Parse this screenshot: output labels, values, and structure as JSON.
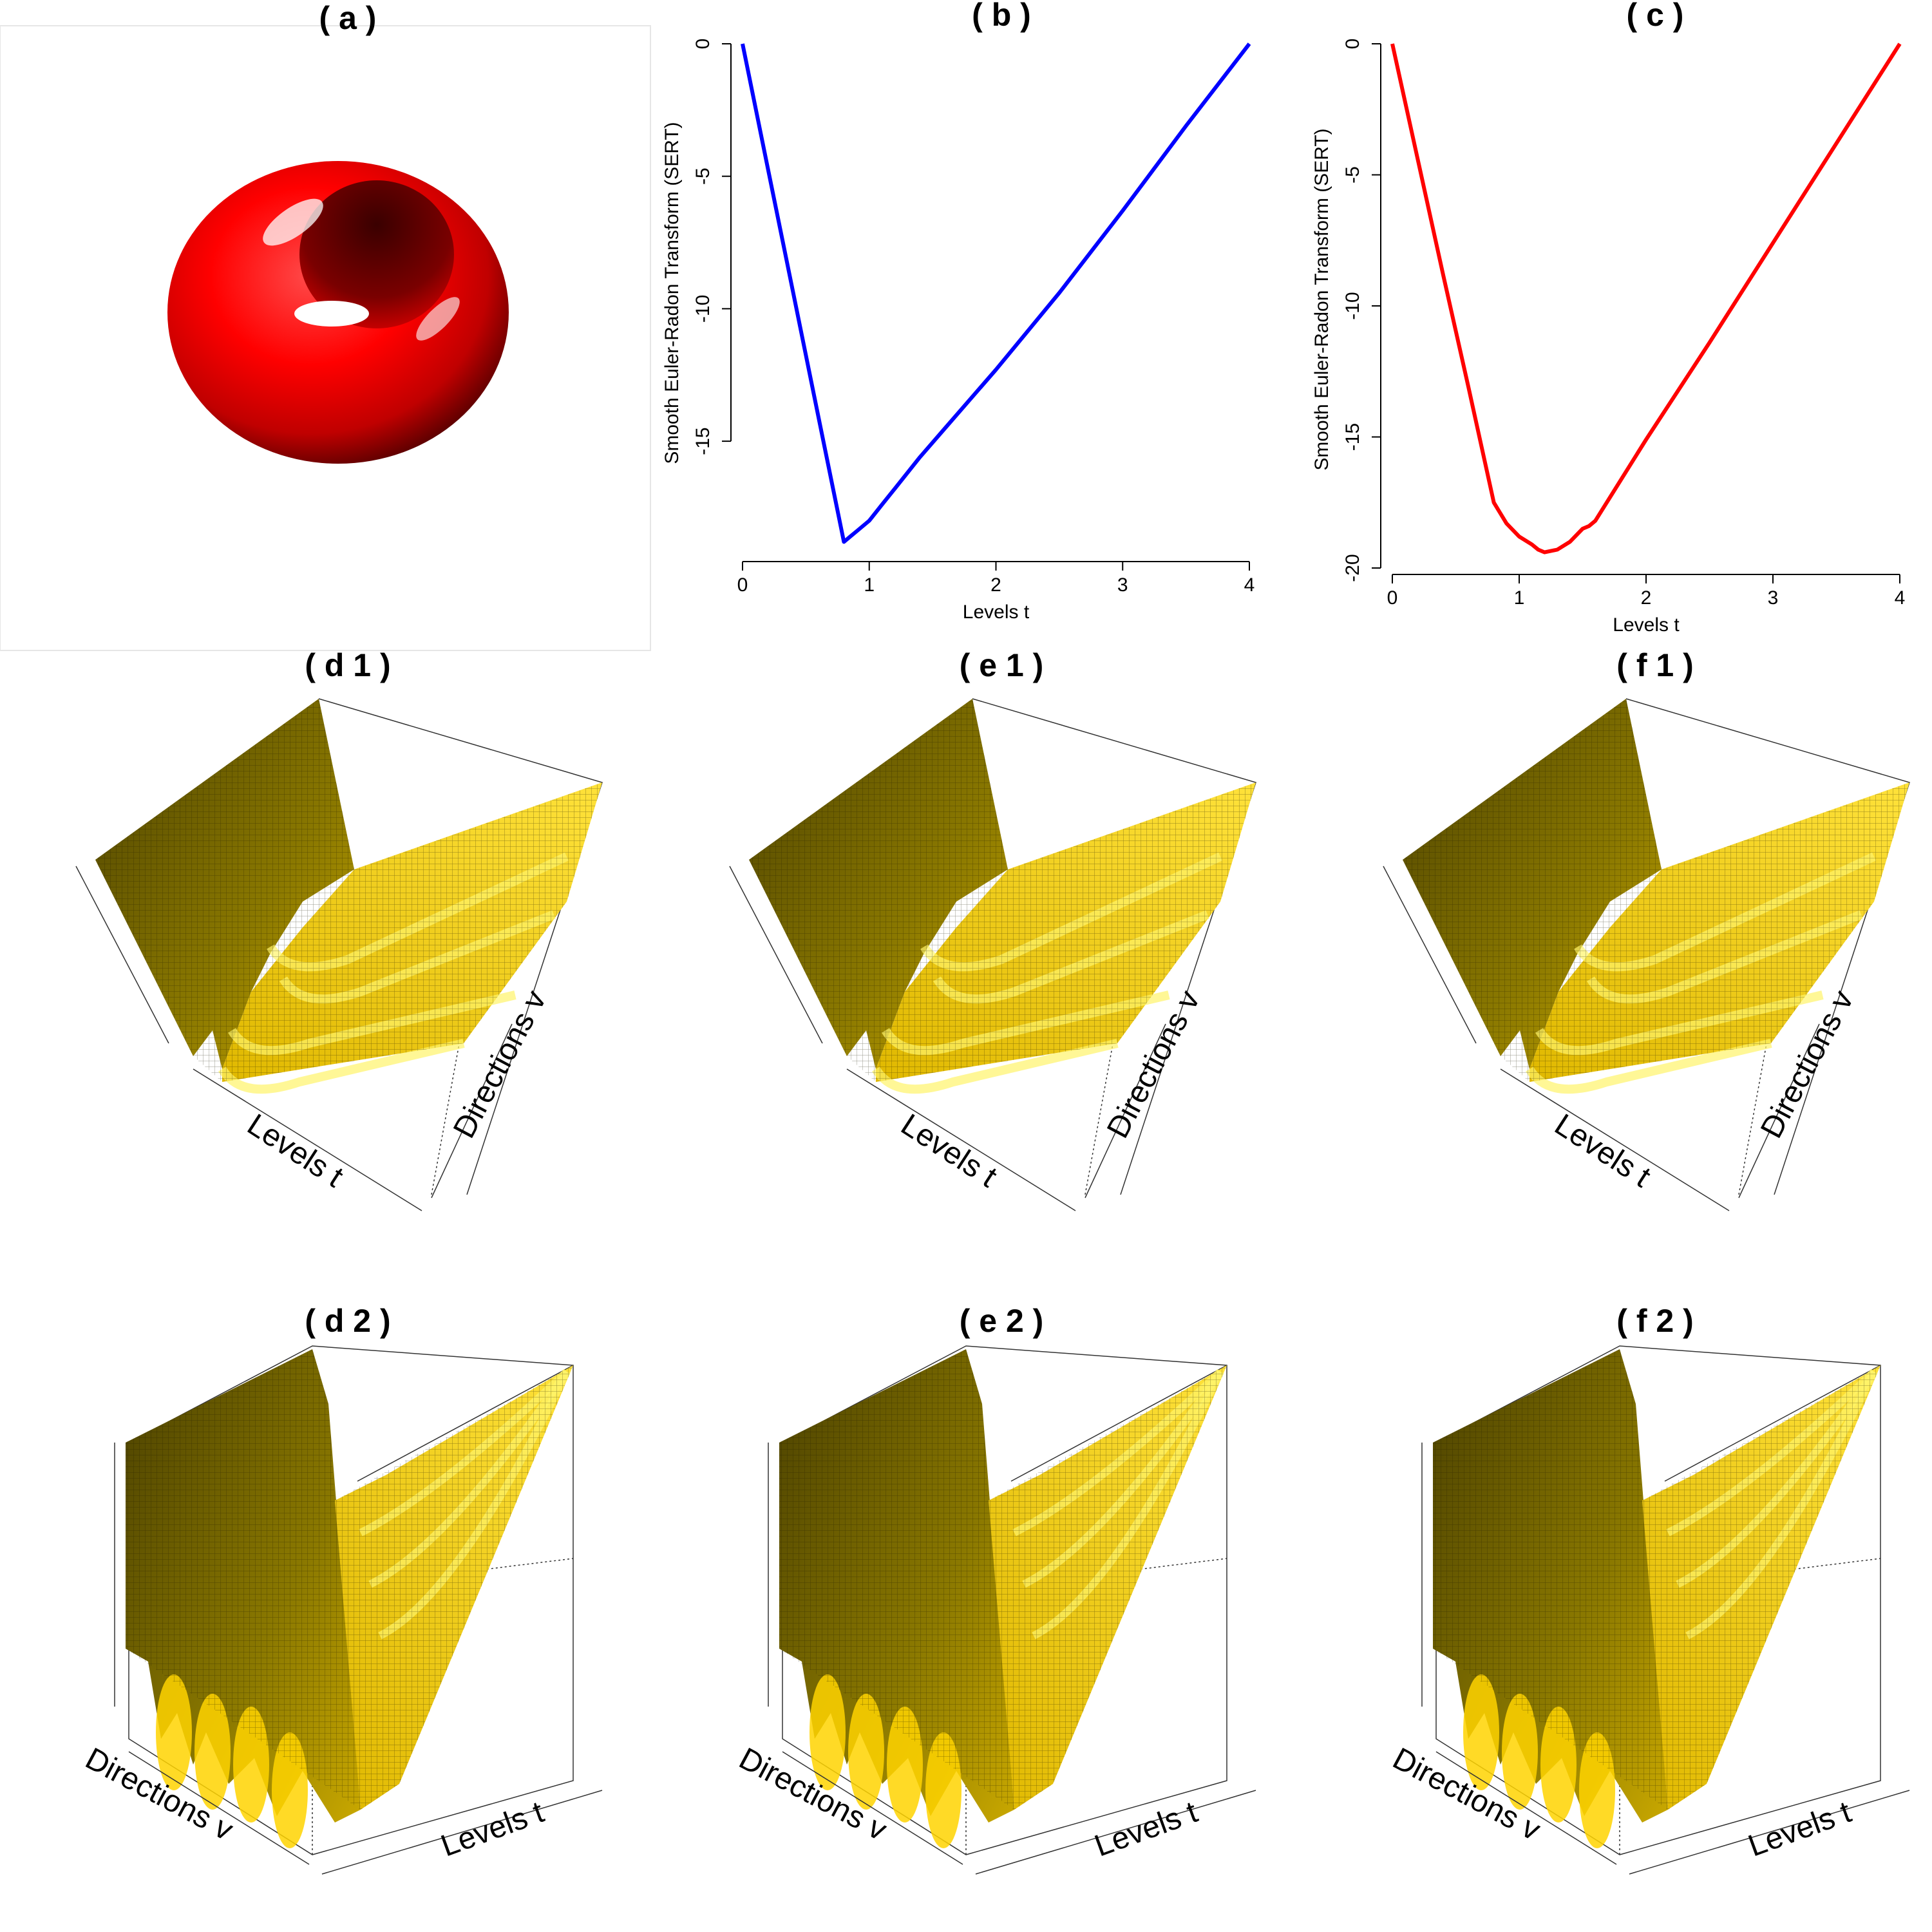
{
  "panels": {
    "a": {
      "title": "( a )"
    },
    "b": {
      "title": "( b )"
    },
    "c": {
      "title": "( c )"
    },
    "d1": {
      "title": "( d 1 )",
      "xlabel": "Levels t",
      "ylabel": "Directions v"
    },
    "e1": {
      "title": "( e 1 )",
      "xlabel": "Levels t",
      "ylabel": "Directions v"
    },
    "f1": {
      "title": "( f 1 )",
      "xlabel": "Levels t",
      "ylabel": "Directions v"
    },
    "d2": {
      "title": "( d 2 )",
      "xlabel": "Levels t",
      "ylabel": "Directions v"
    },
    "e2": {
      "title": "( e 2 )",
      "xlabel": "Levels t",
      "ylabel": "Directions v"
    },
    "f2": {
      "title": "( f 2 )",
      "xlabel": "Levels t",
      "ylabel": "Directions v"
    }
  },
  "colors": {
    "torus": "#ff0000",
    "line_b": "#0000ff",
    "line_c": "#ff0000",
    "surface": "#ffd400",
    "surface_dark": "#6b5a00"
  },
  "chart_data": [
    {
      "id": "b",
      "type": "line",
      "title": "( b )",
      "xlabel": "Levels t",
      "ylabel": "Smooth Euler-Radon Transform (SERT)",
      "xlim": [
        0,
        4
      ],
      "ylim": [
        -19.3,
        0
      ],
      "xticks": [
        0,
        1,
        2,
        3,
        4
      ],
      "yticks": [
        0,
        -5,
        -10,
        -15
      ],
      "series": [
        {
          "x": [
            0,
            0.2,
            0.4,
            0.6,
            0.8,
            0.85,
            0.9,
            1.0,
            1.1,
            1.2,
            1.4,
            1.6,
            2.0,
            2.5,
            3.0,
            3.5,
            4.0
          ],
          "y": [
            0,
            -4.7,
            -9.4,
            -14.1,
            -18.8,
            -18.6,
            -18.4,
            -18.0,
            -17.4,
            -16.8,
            -15.6,
            -14.5,
            -12.3,
            -9.4,
            -6.3,
            -3.1,
            0
          ]
        }
      ]
    },
    {
      "id": "c",
      "type": "line",
      "title": "( c )",
      "xlabel": "Levels t",
      "ylabel": "Smooth Euler-Radon Transform (SERT)",
      "xlim": [
        0,
        4
      ],
      "ylim": [
        -20,
        0
      ],
      "xticks": [
        0,
        1,
        2,
        3,
        4
      ],
      "yticks": [
        0,
        -5,
        -10,
        -15,
        -20
      ],
      "series": [
        {
          "x": [
            0,
            0.2,
            0.4,
            0.6,
            0.8,
            0.85,
            0.9,
            1.0,
            1.1,
            1.15,
            1.2,
            1.3,
            1.4,
            1.5,
            1.55,
            1.6,
            2.0,
            2.5,
            3.0,
            3.5,
            4.0
          ],
          "y": [
            0,
            -4.4,
            -8.8,
            -13.1,
            -17.5,
            -17.9,
            -18.3,
            -18.8,
            -19.1,
            -19.3,
            -19.4,
            -19.3,
            -19.0,
            -18.5,
            -18.4,
            -18.2,
            -15.1,
            -11.4,
            -7.6,
            -3.8,
            0
          ]
        }
      ]
    }
  ]
}
